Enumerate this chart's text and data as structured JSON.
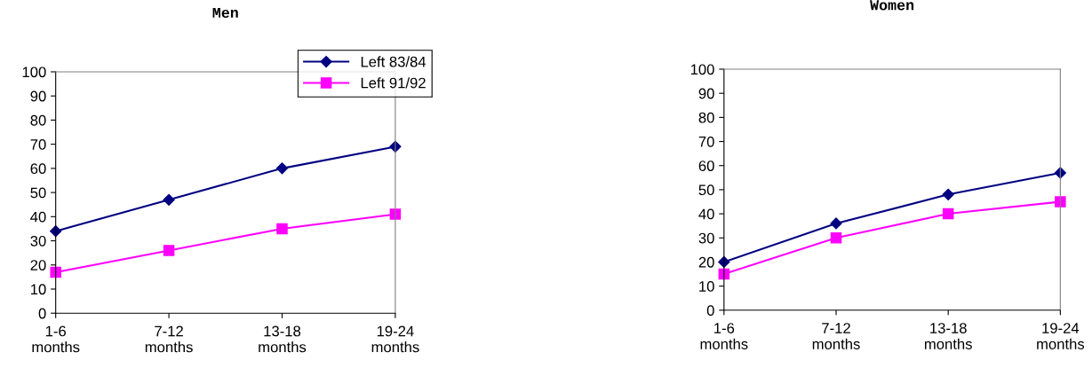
{
  "chart_data": [
    {
      "type": "line",
      "title": "Men",
      "categories": [
        "1-6\nmonths",
        "7-12\nmonths",
        "13-18\nmonths",
        "19-24\nmonths"
      ],
      "series": [
        {
          "name": "Left 83/84",
          "color": "#000080",
          "marker": "diamond",
          "values": [
            34,
            47,
            60,
            69
          ]
        },
        {
          "name": "Left 91/92",
          "color": "#ff00ff",
          "marker": "square",
          "values": [
            17,
            26,
            35,
            41
          ]
        }
      ],
      "ylim": [
        0,
        100
      ],
      "yticks": [
        0,
        10,
        20,
        30,
        40,
        50,
        60,
        70,
        80,
        90,
        100
      ],
      "grid": false,
      "legend": "top right",
      "line_style": "solid"
    },
    {
      "type": "line",
      "title": "Women",
      "categories": [
        "1-6\nmonths",
        "7-12\nmonths",
        "13-18\nmonths",
        "19-24\nmonths"
      ],
      "series": [
        {
          "color": "#000080",
          "marker": "diamond",
          "values": [
            20,
            36,
            48,
            57
          ]
        },
        {
          "color": "#ff00ff",
          "marker": "square",
          "values": [
            15,
            30,
            40,
            45
          ]
        }
      ],
      "ylim": [
        0,
        100
      ],
      "yticks": [
        0,
        10,
        20,
        30,
        40,
        50,
        60,
        70,
        80,
        90,
        100
      ],
      "grid": false,
      "legend": false,
      "line_style": "solid"
    }
  ]
}
